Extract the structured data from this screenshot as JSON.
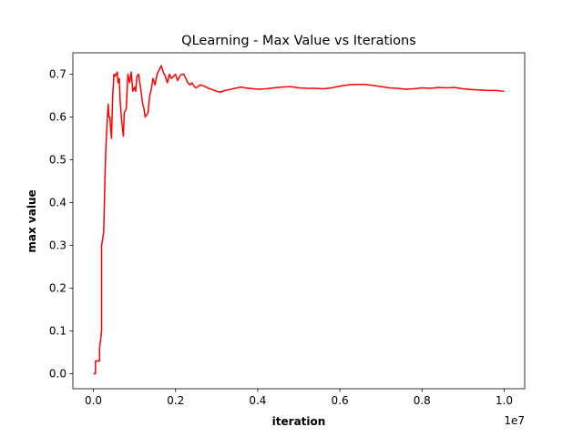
{
  "chart_data": {
    "type": "line",
    "title": "QLearning - Max Value vs Iterations",
    "xlabel": "iteration",
    "ylabel": "max value",
    "x_offset_label": "1e7",
    "xlim": [
      -0.05,
      1.05
    ],
    "ylim": [
      -0.035,
      0.75
    ],
    "x_ticks": [
      0.0,
      0.2,
      0.4,
      0.6,
      0.8,
      1.0
    ],
    "x_tick_labels": [
      "0.0",
      "0.2",
      "0.4",
      "0.6",
      "0.8",
      "1.0"
    ],
    "y_ticks": [
      0.0,
      0.1,
      0.2,
      0.3,
      0.4,
      0.5,
      0.6,
      0.7
    ],
    "y_tick_labels": [
      "0.0",
      "0.1",
      "0.2",
      "0.3",
      "0.4",
      "0.5",
      "0.6",
      "0.7"
    ],
    "grid": false,
    "legend": "none",
    "colors": {
      "line": "#ff0000",
      "axes": "#000000",
      "background": "#ffffff"
    },
    "series": [
      {
        "x": [
          0.0,
          0.005,
          0.005,
          0.01,
          0.015,
          0.015,
          0.02,
          0.02,
          0.025,
          0.028,
          0.03,
          0.033,
          0.036,
          0.038,
          0.04,
          0.044,
          0.047,
          0.05,
          0.053,
          0.055,
          0.058,
          0.06,
          0.063,
          0.065,
          0.068,
          0.07,
          0.073,
          0.075,
          0.078,
          0.08,
          0.084,
          0.088,
          0.092,
          0.096,
          0.1,
          0.103,
          0.106,
          0.11,
          0.113,
          0.116,
          0.12,
          0.123,
          0.126,
          0.13,
          0.133,
          0.137,
          0.14,
          0.145,
          0.15,
          0.155,
          0.16,
          0.165,
          0.17,
          0.175,
          0.18,
          0.185,
          0.19,
          0.195,
          0.2,
          0.205,
          0.21,
          0.215,
          0.22,
          0.225,
          0.23,
          0.235,
          0.24,
          0.245,
          0.25,
          0.26,
          0.27,
          0.28,
          0.29,
          0.3,
          0.31,
          0.32,
          0.33,
          0.34,
          0.35,
          0.36,
          0.37,
          0.38,
          0.39,
          0.4,
          0.42,
          0.44,
          0.46,
          0.48,
          0.5,
          0.52,
          0.54,
          0.56,
          0.58,
          0.6,
          0.62,
          0.64,
          0.66,
          0.68,
          0.7,
          0.72,
          0.74,
          0.76,
          0.78,
          0.8,
          0.82,
          0.84,
          0.86,
          0.88,
          0.9,
          0.92,
          0.94,
          0.96,
          0.98,
          1.0
        ],
        "y": [
          0.0,
          0.0,
          0.03,
          0.03,
          0.03,
          0.06,
          0.1,
          0.3,
          0.33,
          0.45,
          0.52,
          0.58,
          0.63,
          0.6,
          0.6,
          0.55,
          0.65,
          0.7,
          0.695,
          0.7,
          0.705,
          0.68,
          0.69,
          0.64,
          0.6,
          0.58,
          0.555,
          0.61,
          0.615,
          0.62,
          0.7,
          0.68,
          0.705,
          0.66,
          0.67,
          0.66,
          0.695,
          0.7,
          0.68,
          0.66,
          0.63,
          0.62,
          0.6,
          0.605,
          0.61,
          0.65,
          0.66,
          0.69,
          0.675,
          0.7,
          0.71,
          0.72,
          0.705,
          0.695,
          0.68,
          0.7,
          0.69,
          0.695,
          0.7,
          0.685,
          0.695,
          0.7,
          0.7,
          0.69,
          0.68,
          0.675,
          0.68,
          0.672,
          0.668,
          0.675,
          0.672,
          0.667,
          0.664,
          0.66,
          0.658,
          0.662,
          0.664,
          0.666,
          0.668,
          0.67,
          0.668,
          0.667,
          0.666,
          0.665,
          0.666,
          0.668,
          0.67,
          0.671,
          0.668,
          0.667,
          0.667,
          0.666,
          0.668,
          0.672,
          0.675,
          0.676,
          0.676,
          0.674,
          0.671,
          0.668,
          0.667,
          0.665,
          0.666,
          0.668,
          0.667,
          0.669,
          0.668,
          0.669,
          0.666,
          0.664,
          0.663,
          0.662,
          0.662,
          0.66
        ]
      }
    ]
  }
}
